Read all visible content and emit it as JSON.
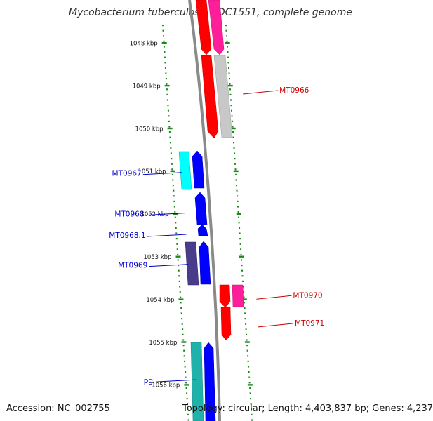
{
  "title": "Mycobacterium tuberculosis CDC1551, complete genome",
  "accession": "Accession: NC_002755",
  "summary": "Topology: circular; Length: 4,403,837 bp; Genes: 4,237",
  "colors": {
    "background": "#ffffff",
    "tick_green": "#1a8a1a",
    "backbone": "#8a8a8a",
    "forward_label": "#cc0000",
    "reverse_label": "#0000cc"
  },
  "chart_data": {
    "type": "genome-map",
    "scale_unit": "kbp",
    "ticks": [
      {
        "label": "1048 kbp",
        "kbp": 1048
      },
      {
        "label": "1049 kbp",
        "kbp": 1049
      },
      {
        "label": "1050 kbp",
        "kbp": 1050
      },
      {
        "label": "1051 kbp",
        "kbp": 1051
      },
      {
        "label": "1052 kbp",
        "kbp": 1052
      },
      {
        "label": "1053 kbp",
        "kbp": 1053
      },
      {
        "label": "1054 kbp",
        "kbp": 1054
      },
      {
        "label": "1055 kbp",
        "kbp": 1055
      },
      {
        "label": "1056 kbp",
        "kbp": 1056
      }
    ],
    "gene_labels": [
      {
        "text": "MT0966",
        "strand": "forward",
        "kbp": 1049.1
      },
      {
        "text": "MT0967",
        "strand": "reverse",
        "kbp": 1051.05
      },
      {
        "text": "MT0968",
        "strand": "reverse",
        "kbp": 1052.0
      },
      {
        "text": "MT0968.1",
        "strand": "reverse",
        "kbp": 1052.5
      },
      {
        "text": "MT0969",
        "strand": "reverse",
        "kbp": 1053.2
      },
      {
        "text": "MT0970",
        "strand": "forward",
        "kbp": 1053.9
      },
      {
        "text": "MT0971",
        "strand": "forward",
        "kbp": 1054.55
      },
      {
        "text": "pgi",
        "strand": "reverse",
        "kbp": 1055.9
      }
    ]
  }
}
